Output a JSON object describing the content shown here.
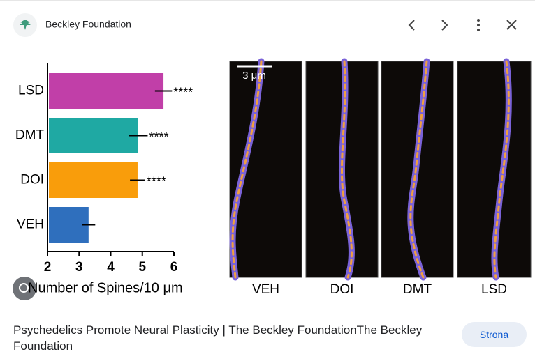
{
  "header": {
    "source": "Beckley Foundation"
  },
  "chart_data": {
    "type": "hbar",
    "categories": [
      "LSD",
      "DMT",
      "DOI",
      "VEH"
    ],
    "values": [
      5.67,
      4.87,
      4.85,
      3.3
    ],
    "errors": [
      0.27,
      0.3,
      0.24,
      0.21
    ],
    "significance": [
      "****",
      "****",
      "****",
      null
    ],
    "colors": [
      "#c13fa8",
      "#1fa9a3",
      "#f99d0b",
      "#2f6fbd"
    ],
    "xlim": [
      2,
      6
    ],
    "xticks": [
      2,
      3,
      4,
      5,
      6
    ],
    "x_label": "Number of Spines/10 μm"
  },
  "micrographs": {
    "scale_bar": "3 μm",
    "labels": [
      "VEH",
      "DOI",
      "DMT",
      "LSD"
    ]
  },
  "caption": "Psychedelics Promote Neural Plasticity | The Beckley FoundationThe Beckley Foundation",
  "button": "Strona"
}
